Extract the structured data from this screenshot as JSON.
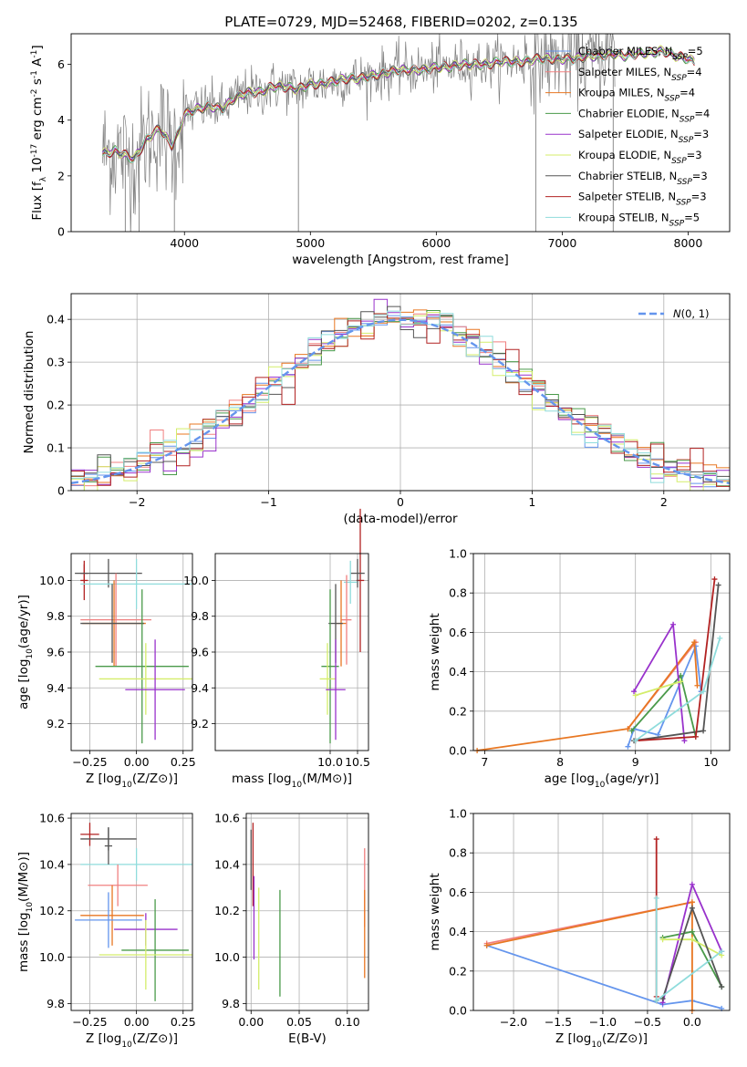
{
  "title": "PLATE=0729, MJD=52468, FIBERID=0202, z=0.135",
  "colors": {
    "data": "#808080",
    "chab_miles": "#6495ed",
    "salp_miles": "#f08080",
    "krou_miles": "#e87722",
    "chab_elodie": "#4a9a4a",
    "salp_elodie": "#9932cc",
    "krou_elodie": "#d4ed6a",
    "chab_stelib": "#555555",
    "salp_stelib": "#b22222",
    "krou_stelib": "#8fdcdc",
    "grid": "#b0b0b0"
  },
  "chart_data": [
    {
      "type": "line",
      "title": "PLATE=0729, MJD=52468, FIBERID=0202, z=0.135",
      "xlabel": "wavelength [Angstrom, rest frame]",
      "ylabel": "Flux [f_λ 10^-17 erg cm^-2 s^-1 A^-1]",
      "xlim": [
        3100,
        8330
      ],
      "ylim": [
        0,
        7.1
      ],
      "xticks": [
        4000,
        5000,
        6000,
        7000,
        8000
      ],
      "yticks": [
        0,
        2,
        4,
        6
      ],
      "grid": false,
      "legend_position": "top-right",
      "series": [
        {
          "name": "Chabrier MILES, N_SSP=5",
          "key": "chab_miles"
        },
        {
          "name": "Salpeter MILES, N_SSP=4",
          "key": "salp_miles"
        },
        {
          "name": "Kroupa MILES, N_SSP=4",
          "key": "krou_miles"
        },
        {
          "name": "Chabrier ELODIE, N_SSP=4",
          "key": "chab_elodie"
        },
        {
          "name": "Salpeter ELODIE, N_SSP=3",
          "key": "salp_elodie"
        },
        {
          "name": "Kroupa ELODIE, N_SSP=3",
          "key": "krou_elodie"
        },
        {
          "name": "Chabrier STELIB, N_SSP=3",
          "key": "chab_stelib"
        },
        {
          "name": "Salpeter STELIB, N_SSP=3",
          "key": "salp_stelib"
        },
        {
          "name": "Kroupa STELIB, N_SSP=5",
          "key": "krou_stelib"
        }
      ],
      "model_continuum": [
        [
          3350,
          2.8
        ],
        [
          3450,
          2.9
        ],
        [
          3600,
          2.6
        ],
        [
          3700,
          3.3
        ],
        [
          3800,
          3.7
        ],
        [
          3900,
          3.1
        ],
        [
          3950,
          3.5
        ],
        [
          4000,
          4.2
        ],
        [
          4100,
          4.4
        ],
        [
          4200,
          4.5
        ],
        [
          4300,
          4.4
        ],
        [
          4400,
          4.8
        ],
        [
          4500,
          5.0
        ],
        [
          4600,
          5.0
        ],
        [
          4700,
          5.2
        ],
        [
          4800,
          5.2
        ],
        [
          4900,
          5.1
        ],
        [
          5000,
          5.3
        ],
        [
          5100,
          5.3
        ],
        [
          5200,
          5.4
        ],
        [
          5300,
          5.5
        ],
        [
          5400,
          5.5
        ],
        [
          5500,
          5.6
        ],
        [
          5600,
          5.7
        ],
        [
          5700,
          5.8
        ],
        [
          5800,
          5.8
        ],
        [
          5900,
          5.8
        ],
        [
          6000,
          5.9
        ],
        [
          6100,
          5.9
        ],
        [
          6200,
          6.0
        ],
        [
          6300,
          6.0
        ],
        [
          6400,
          6.0
        ],
        [
          6500,
          6.1
        ],
        [
          6600,
          6.1
        ],
        [
          6700,
          6.1
        ],
        [
          6800,
          6.2
        ],
        [
          6900,
          6.2
        ],
        [
          7000,
          6.2
        ],
        [
          7100,
          6.2
        ],
        [
          7200,
          6.3
        ],
        [
          7300,
          6.3
        ],
        [
          7400,
          6.4
        ],
        [
          7500,
          6.3
        ],
        [
          7600,
          6.4
        ],
        [
          7700,
          6.4
        ],
        [
          7800,
          6.5
        ],
        [
          7900,
          6.3
        ],
        [
          8000,
          6.2
        ],
        [
          8050,
          6.1
        ]
      ]
    },
    {
      "type": "step",
      "xlabel": "(data-model)/error",
      "ylabel": "Normed distribution",
      "xlim": [
        -2.5,
        2.5
      ],
      "ylim": [
        0,
        0.46
      ],
      "xticks": [
        -2,
        -1,
        0,
        1,
        2
      ],
      "yticks": [
        0.0,
        0.1,
        0.2,
        0.3,
        0.4
      ],
      "grid": true,
      "legend_position": "top-right",
      "legend": "N(0,1)",
      "bin_width": 0.1
    },
    {
      "type": "errorbar",
      "xlabel": "Z [log10(Z/Z⊙)]",
      "ylabel": "age [log10(age/yr)]",
      "xlim": [
        -0.35,
        0.3
      ],
      "ylim": [
        9.05,
        10.15
      ],
      "xticks": [
        "-0.25",
        "0.00",
        "0.25"
      ],
      "yticks": [
        "9.2",
        "9.4",
        "9.6",
        "9.8",
        "10.0"
      ],
      "grid": true,
      "points": [
        {
          "key": "salp_stelib",
          "x": -0.28,
          "y": 10.0,
          "xerr": 0.02,
          "yerr": 0.11
        },
        {
          "key": "salp_stelib",
          "x": -0.28,
          "y": 10.04,
          "xerr": 0.02,
          "yerr": 0.05
        },
        {
          "key": "chab_stelib",
          "x": -0.15,
          "y": 10.04,
          "xerr": 0.18,
          "yerr": 0.08
        },
        {
          "key": "krou_stelib",
          "x": 0.0,
          "y": 9.98,
          "xerr": 0.3,
          "yerr": 0.14
        },
        {
          "key": "salp_miles",
          "x": -0.11,
          "y": 9.78,
          "xerr": 0.19,
          "yerr": 0.26
        },
        {
          "key": "krou_miles",
          "x": -0.12,
          "y": 9.76,
          "xerr": 0.17,
          "yerr": 0.24
        },
        {
          "key": "chab_stelib",
          "x": -0.13,
          "y": 9.76,
          "xerr": 0.17,
          "yerr": 0.22
        },
        {
          "key": "chab_elodie",
          "x": 0.03,
          "y": 9.52,
          "xerr": 0.25,
          "yerr": 0.43
        },
        {
          "key": "krou_elodie",
          "x": 0.05,
          "y": 9.45,
          "xerr": 0.25,
          "yerr": 0.2
        },
        {
          "key": "salp_elodie",
          "x": 0.1,
          "y": 9.39,
          "xerr": 0.16,
          "yerr": 0.28
        }
      ]
    },
    {
      "type": "errorbar",
      "xlabel": "mass [log10(M/M⊙)]",
      "ylabel": "",
      "xlim": [
        7.9,
        10.7
      ],
      "ylim": [
        9.05,
        10.15
      ],
      "xticks": [
        "10.0",
        "10.5"
      ],
      "yticks": [
        "9.2",
        "9.4",
        "9.6",
        "9.8",
        "10.0"
      ],
      "grid": true,
      "points": [
        {
          "key": "salp_stelib",
          "x": 10.55,
          "y": 10.0,
          "xerr": 0.07,
          "yerr": 0.4
        },
        {
          "key": "chab_stelib",
          "x": 10.5,
          "y": 10.04,
          "xerr": 0.13,
          "yerr": 0.08
        },
        {
          "key": "krou_stelib",
          "x": 10.37,
          "y": 9.99,
          "xerr": 0.12,
          "yerr": 0.12
        },
        {
          "key": "salp_miles",
          "x": 10.3,
          "y": 9.78,
          "xerr": 0.09,
          "yerr": 0.25
        },
        {
          "key": "krou_miles",
          "x": 10.2,
          "y": 9.76,
          "xerr": 0.09,
          "yerr": 0.24
        },
        {
          "key": "chab_stelib",
          "x": 10.1,
          "y": 9.76,
          "xerr": 0.13,
          "yerr": 0.22
        },
        {
          "key": "chab_elodie",
          "x": 10.0,
          "y": 9.52,
          "xerr": 0.16,
          "yerr": 0.43
        },
        {
          "key": "krou_elodie",
          "x": 9.95,
          "y": 9.45,
          "xerr": 0.14,
          "yerr": 0.2
        },
        {
          "key": "salp_elodie",
          "x": 10.1,
          "y": 9.39,
          "xerr": 0.18,
          "yerr": 0.28
        }
      ]
    },
    {
      "type": "line",
      "xlabel": "age [log10(age/yr)]",
      "ylabel": "mass weight",
      "xlim": [
        6.85,
        10.25
      ],
      "ylim": [
        0,
        1.0
      ],
      "xticks": [
        7,
        8,
        9,
        10
      ],
      "yticks": [
        "0.0",
        "0.2",
        "0.4",
        "0.6",
        "0.8",
        "1.0"
      ],
      "grid": true,
      "series": [
        {
          "key": "chab_miles",
          "points": [
            [
              8.9,
              0.02
            ],
            [
              8.98,
              0.11
            ],
            [
              9.3,
              0.08
            ],
            [
              9.8,
              0.53
            ],
            [
              9.87,
              0.3
            ]
          ]
        },
        {
          "key": "salp_miles",
          "points": [
            [
              8.9,
              0.11
            ],
            [
              9.8,
              0.55
            ]
          ]
        },
        {
          "key": "krou_miles",
          "points": [
            [
              6.9,
              0.0
            ],
            [
              8.9,
              0.11
            ],
            [
              9.78,
              0.55
            ],
            [
              9.82,
              0.33
            ]
          ]
        },
        {
          "key": "chab_elodie",
          "points": [
            [
              8.95,
              0.1
            ],
            [
              9.6,
              0.38
            ],
            [
              9.8,
              0.07
            ]
          ]
        },
        {
          "key": "salp_elodie",
          "points": [
            [
              8.98,
              0.3
            ],
            [
              9.5,
              0.64
            ],
            [
              9.65,
              0.05
            ]
          ]
        },
        {
          "key": "krou_elodie",
          "points": [
            [
              9.0,
              0.28
            ],
            [
              9.6,
              0.35
            ]
          ]
        },
        {
          "key": "chab_stelib",
          "points": [
            [
              8.98,
              0.05
            ],
            [
              9.9,
              0.1
            ],
            [
              10.1,
              0.84
            ]
          ]
        },
        {
          "key": "salp_stelib",
          "points": [
            [
              9.0,
              0.05
            ],
            [
              9.8,
              0.07
            ],
            [
              10.05,
              0.87
            ]
          ]
        },
        {
          "key": "krou_stelib",
          "points": [
            [
              9.0,
              0.05
            ],
            [
              9.9,
              0.3
            ],
            [
              10.12,
              0.57
            ]
          ]
        }
      ]
    },
    {
      "type": "errorbar",
      "xlabel": "Z [log10(Z/Z⊙)]",
      "ylabel": "mass [log10(M/M⊙)]",
      "xlim": [
        -0.35,
        0.3
      ],
      "ylim": [
        9.77,
        10.62
      ],
      "xticks": [
        "-0.25",
        "0.00",
        "0.25"
      ],
      "yticks": [
        "9.8",
        "10.0",
        "10.2",
        "10.4",
        "10.6"
      ],
      "grid": true,
      "points": [
        {
          "key": "salp_stelib",
          "x": -0.25,
          "y": 10.53,
          "xerr": 0.05,
          "yerr": 0.05
        },
        {
          "key": "chab_stelib",
          "x": -0.15,
          "y": 10.51,
          "xerr": 0.15,
          "yerr": 0.05
        },
        {
          "key": "krou_stelib",
          "x": 0.0,
          "y": 10.4,
          "xerr": 0.3,
          "yerr": 0.07
        },
        {
          "key": "salp_miles",
          "x": -0.1,
          "y": 10.31,
          "xerr": 0.16,
          "yerr": 0.09
        },
        {
          "key": "krou_miles",
          "x": -0.13,
          "y": 10.18,
          "xerr": 0.17,
          "yerr": 0.13
        },
        {
          "key": "chab_miles",
          "x": -0.15,
          "y": 10.16,
          "xerr": 0.18,
          "yerr": 0.12
        },
        {
          "key": "salp_elodie",
          "x": 0.05,
          "y": 10.12,
          "xerr": 0.17,
          "yerr": 0.07
        },
        {
          "key": "chab_elodie",
          "x": 0.1,
          "y": 10.03,
          "xerr": 0.18,
          "yerr": 0.22
        },
        {
          "key": "krou_elodie",
          "x": 0.05,
          "y": 10.01,
          "xerr": 0.25,
          "yerr": 0.15
        },
        {
          "key": "chab_stelib",
          "x": -0.15,
          "y": 10.48,
          "xerr": 0.02,
          "yerr": 0.08
        }
      ]
    },
    {
      "type": "errorbar",
      "xlabel": "E(B-V)",
      "ylabel": "",
      "xlim": [
        -0.005,
        0.122
      ],
      "ylim": [
        9.77,
        10.62
      ],
      "xticks": [
        "0.00",
        "0.05",
        "0.10"
      ],
      "yticks": [
        "9.8",
        "10.0",
        "10.2",
        "10.4",
        "10.6"
      ],
      "grid": true,
      "points": [
        {
          "key": "chab_stelib",
          "x": 0.0,
          "y": 10.42,
          "xerr": 0,
          "yerr": 0.13
        },
        {
          "key": "salp_stelib",
          "x": 0.002,
          "y": 10.4,
          "xerr": 0,
          "yerr": 0.18
        },
        {
          "key": "salp_elodie",
          "x": 0.003,
          "y": 10.17,
          "xerr": 0,
          "yerr": 0.18
        },
        {
          "key": "krou_elodie",
          "x": 0.008,
          "y": 10.08,
          "xerr": 0,
          "yerr": 0.22
        },
        {
          "key": "chab_elodie",
          "x": 0.03,
          "y": 10.06,
          "xerr": 0,
          "yerr": 0.23
        },
        {
          "key": "salp_miles",
          "x": 0.118,
          "y": 10.3,
          "xerr": 0,
          "yerr": 0.17
        },
        {
          "key": "krou_miles",
          "x": 0.118,
          "y": 10.1,
          "xerr": 0,
          "yerr": 0.19
        }
      ]
    },
    {
      "type": "line",
      "xlabel": "Z [log10(Z/Z⊙)]",
      "ylabel": "mass weight",
      "xlim": [
        -2.45,
        0.42
      ],
      "ylim": [
        0,
        1.0
      ],
      "xticks": [
        "-2.0",
        "-1.5",
        "-1.0",
        "-0.5",
        "0.0"
      ],
      "yticks": [
        "0.0",
        "0.2",
        "0.4",
        "0.6",
        "0.8",
        "1.0"
      ],
      "grid": true,
      "series": [
        {
          "key": "chab_miles",
          "points": [
            [
              -2.3,
              0.33
            ],
            [
              -0.33,
              0.03
            ],
            [
              0.0,
              0.05
            ],
            [
              0.33,
              0.01
            ]
          ]
        },
        {
          "key": "salp_miles",
          "points": [
            [
              -2.3,
              0.34
            ],
            [
              0.0,
              0.55
            ]
          ]
        },
        {
          "key": "krou_miles",
          "points": [
            [
              -2.3,
              0.33
            ],
            [
              0.0,
              0.55
            ],
            [
              0.0,
              0.0
            ]
          ]
        },
        {
          "key": "chab_elodie",
          "points": [
            [
              -0.33,
              0.37
            ],
            [
              0.0,
              0.4
            ],
            [
              0.33,
              0.12
            ]
          ]
        },
        {
          "key": "salp_elodie",
          "points": [
            [
              -0.33,
              0.04
            ],
            [
              0.0,
              0.64
            ],
            [
              0.33,
              0.3
            ]
          ]
        },
        {
          "key": "krou_elodie",
          "points": [
            [
              -0.33,
              0.36
            ],
            [
              0.0,
              0.36
            ],
            [
              0.33,
              0.28
            ]
          ]
        },
        {
          "key": "chab_stelib",
          "points": [
            [
              -0.33,
              0.06
            ],
            [
              0.0,
              0.52
            ],
            [
              0.33,
              0.12
            ]
          ]
        },
        {
          "key": "salp_stelib",
          "points": [
            [
              -0.4,
              0.07
            ],
            [
              -0.4,
              0.87
            ],
            [
              -0.4,
              0.05
            ]
          ]
        },
        {
          "key": "krou_stelib",
          "points": [
            [
              -0.4,
              0.57
            ],
            [
              -0.4,
              0.05
            ],
            [
              0.33,
              0.3
            ]
          ]
        }
      ]
    }
  ]
}
